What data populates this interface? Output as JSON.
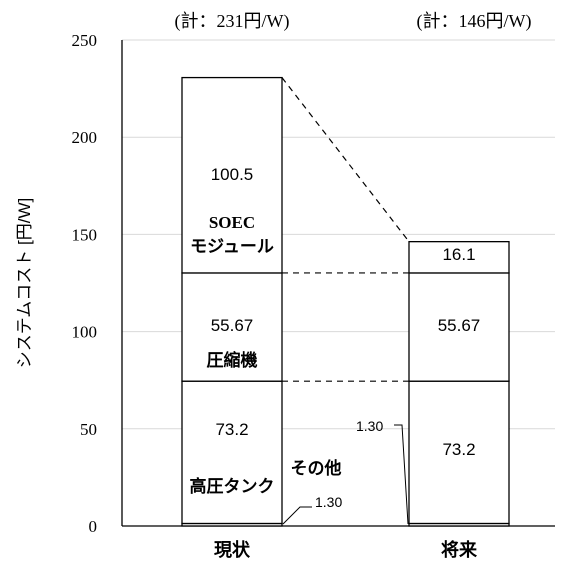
{
  "chart_data": {
    "type": "bar",
    "stacked": true,
    "categories": [
      "現状",
      "将来"
    ],
    "totals_labels": [
      "(計：231円/W)",
      "(計：146円/W)"
    ],
    "ylabel": "システムコスト [円/W]",
    "ylim": [
      0,
      250
    ],
    "yticks": [
      0,
      50,
      100,
      150,
      200,
      250
    ],
    "grid": true,
    "series": [
      {
        "name": "その他",
        "values": [
          1.3,
          1.3
        ],
        "labels": [
          "1.30",
          "1.30"
        ]
      },
      {
        "name": "高圧タンク",
        "values": [
          73.2,
          73.2
        ],
        "labels": [
          "73.2",
          "73.2"
        ]
      },
      {
        "name": "圧縮機",
        "values": [
          55.67,
          55.67
        ],
        "labels": [
          "55.67",
          "55.67"
        ]
      },
      {
        "name": "SOEC\nモジュール",
        "values": [
          100.5,
          16.1
        ],
        "labels": [
          "100.5",
          "16.1"
        ]
      }
    ],
    "colors": {
      "bar_fill": "#ffffff",
      "bar_stroke": "#000000",
      "grid": "#d9d9d9"
    }
  }
}
